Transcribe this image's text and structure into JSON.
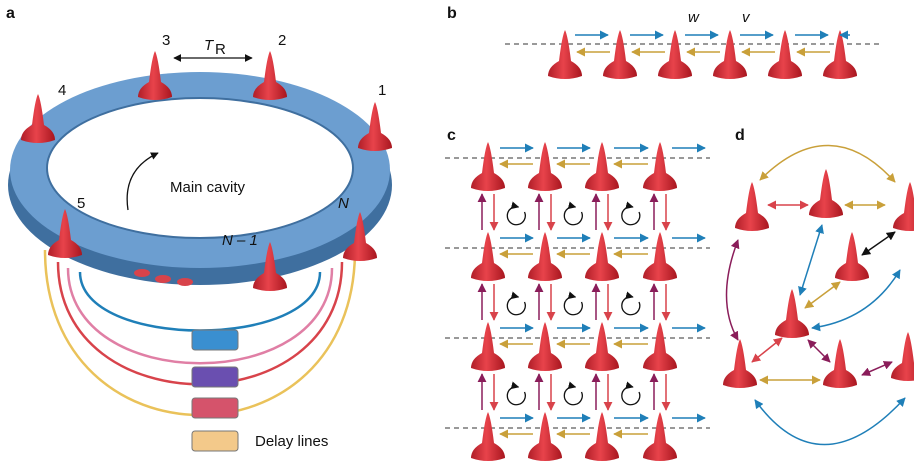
{
  "panels": {
    "a": {
      "label": "a",
      "pulse_labels": [
        "3",
        "2",
        "4",
        "1",
        "5",
        "N",
        "N – 1"
      ],
      "round_trip": {
        "symbol": "T",
        "subscript": "R"
      },
      "cavity_label": "Main cavity",
      "delay_label": "Delay lines"
    },
    "b": {
      "label": "b",
      "couplings": [
        "w",
        "v"
      ]
    },
    "c": {
      "label": "c"
    },
    "d": {
      "label": "d"
    }
  }
}
